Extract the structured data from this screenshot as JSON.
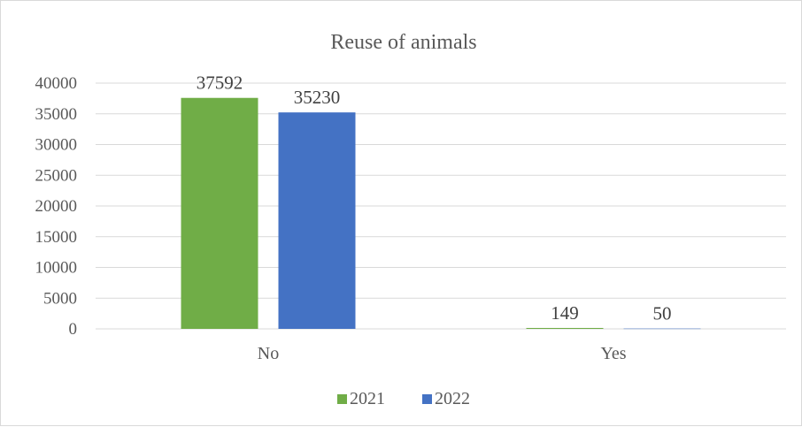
{
  "chart_data": {
    "type": "bar",
    "title": "Reuse of animals",
    "categories": [
      "No",
      "Yes"
    ],
    "series": [
      {
        "name": "2021",
        "values": [
          37592,
          149
        ],
        "labels": [
          "37592",
          "149"
        ],
        "color": "#70ad47"
      },
      {
        "name": "2022",
        "values": [
          35230,
          50
        ],
        "labels": [
          "35230",
          "50"
        ],
        "color": "#4472c4"
      }
    ],
    "yticks": [
      "0",
      "5000",
      "10000",
      "15000",
      "20000",
      "25000",
      "30000",
      "35000",
      "40000"
    ],
    "ylim": [
      0,
      40000
    ],
    "grid": true,
    "legend_position": "bottom"
  }
}
